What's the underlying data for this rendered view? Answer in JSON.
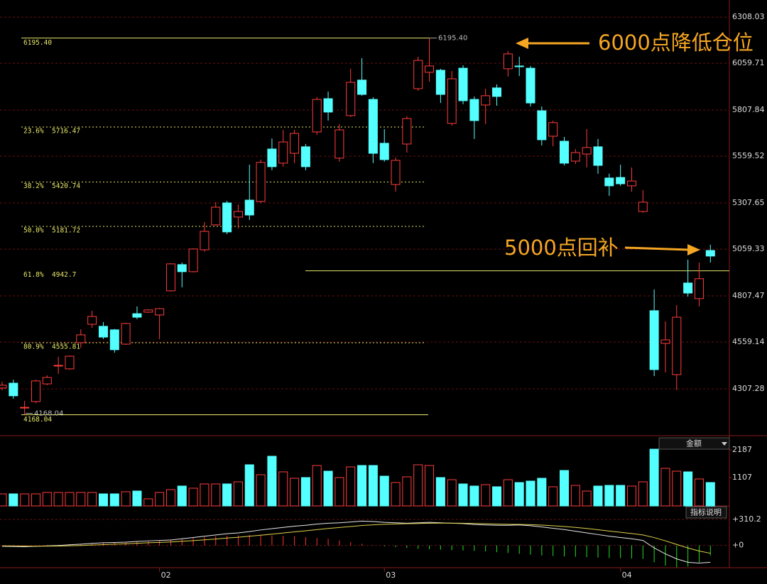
{
  "chart_data": [
    {
      "type": "candlestick",
      "ylim": [
        4063,
        6400
      ],
      "yticks": [
        6308.03,
        6059.71,
        5807.84,
        5559.52,
        5307.65,
        5059.33,
        4807.47,
        4559.14,
        4307.28
      ],
      "grid": true,
      "up_color": "#ff3c3c",
      "down_color": "#54ffff",
      "categories": [
        null,
        null,
        null,
        null,
        null,
        null,
        null,
        null,
        null,
        null,
        null,
        null,
        null,
        null,
        "02",
        null,
        null,
        null,
        null,
        null,
        null,
        null,
        null,
        null,
        null,
        null,
        null,
        null,
        null,
        null,
        null,
        null,
        null,
        null,
        "03",
        null,
        null,
        null,
        null,
        null,
        null,
        null,
        null,
        null,
        null,
        null,
        null,
        null,
        null,
        null,
        null,
        null,
        null,
        null,
        null,
        "04",
        null,
        null,
        null,
        null,
        null,
        null,
        null,
        null
      ],
      "open": [
        4312,
        4338,
        4205,
        4239,
        4334,
        4430,
        4415,
        4556,
        4655,
        4644,
        4625,
        4548,
        4712,
        4720,
        4705,
        4835,
        4976,
        4938,
        5056,
        5190,
        5308,
        5232,
        5323,
        5316,
        5598,
        5522,
        5575,
        5610,
        5690,
        5869,
        5549,
        5778,
        5969,
        5865,
        5629,
        5407,
        5625,
        5923,
        6011,
        6022,
        5736,
        6033,
        5865,
        5835,
        5927,
        6030,
        6045,
        6033,
        5804,
        5667,
        5640,
        5533,
        5571,
        5610,
        5442,
        5445,
        5400,
        5262,
        4728,
        4552,
        4384,
        4877,
        4793,
        5052
      ],
      "high": [
        4346,
        4357,
        4243,
        4357,
        4380,
        4480,
        4487,
        4628,
        4728,
        4667,
        4630,
        4663,
        4751,
        4736,
        4743,
        4984,
        4987,
        5064,
        5205,
        5312,
        5319,
        5300,
        5514,
        5541,
        5655,
        5701,
        5701,
        5625,
        5877,
        5907,
        5732,
        6030,
        6087,
        5877,
        5705,
        5552,
        5774,
        6095,
        6195.4,
        6030,
        6018,
        6049,
        5881,
        5923,
        5946,
        6125,
        6095,
        6045,
        5827,
        5751,
        5663,
        5598,
        5705,
        5652,
        5465,
        5514,
        5499,
        5377,
        4842,
        4670,
        4758,
        5003,
        4987,
        5083
      ],
      "low": [
        4300,
        4254,
        4168.04,
        4231,
        4327,
        4388,
        4410,
        4529,
        4636,
        4575,
        4502,
        4544,
        4682,
        4716,
        4575,
        4831,
        4854,
        4934,
        5045,
        5186,
        5140,
        5171,
        5216,
        5308,
        5484,
        5503,
        5522,
        5484,
        5675,
        5751,
        5530,
        5770,
        5885,
        5522,
        5530,
        5369,
        5579,
        5911,
        5961,
        5846,
        5724,
        5839,
        5652,
        5732,
        5831,
        5988,
        5991,
        5827,
        5617,
        5613,
        5510,
        5518,
        5499,
        5465,
        5346,
        5400,
        5369,
        5255,
        4376,
        4396,
        4300,
        4804,
        4751,
        4987
      ],
      "close": [
        4327,
        4270,
        4208,
        4350,
        4369,
        4434,
        4483,
        4598,
        4697,
        4586,
        4518,
        4659,
        4693,
        4732,
        4739,
        4980,
        4938,
        5060,
        5155,
        5285,
        5152,
        5262,
        5243,
        5526,
        5503,
        5636,
        5682,
        5503,
        5865,
        5797,
        5701,
        5957,
        5892,
        5575,
        5541,
        5537,
        5762,
        6075,
        6045,
        5892,
        5976,
        5858,
        5751,
        5885,
        5881,
        6110,
        6041,
        5846,
        5648,
        5740,
        5522,
        5579,
        5606,
        5510,
        5400,
        5411,
        5426,
        5312,
        4411,
        4571,
        4693,
        4823,
        4900,
        5022
      ],
      "levels": [
        {
          "price": {
            "value": 6195.4,
            "label": "6195.40"
          }
        },
        {
          "ratio": "23.6%",
          "price": 5716.47
        },
        {
          "ratio": "38.2%",
          "price": 5420.74
        },
        {
          "ratio": "50.0%",
          "price": 5181.72
        },
        {
          "ratio": "61.8%",
          "price": 4942.7
        },
        {
          "ratio": "80.9%",
          "price": 4555.81
        },
        {
          "price": 4168.04
        }
      ],
      "level_color": "#e8e86a",
      "annotations": [
        "6000点降低仓位",
        "5000点回补"
      ]
    },
    {
      "type": "volume",
      "ylim": [
        0,
        2714
      ],
      "yticks": [
        2187,
        1107
      ],
      "values": [
        471,
        471,
        471,
        471,
        526,
        526,
        526,
        526,
        526,
        471,
        471,
        554,
        582,
        277,
        526,
        637,
        776,
        693,
        859,
        859,
        859,
        942,
        1607,
        1219,
        1939,
        1330,
        1080,
        1108,
        1579,
        1357,
        1108,
        1524,
        1579,
        1579,
        1163,
        914,
        1136,
        1607,
        1579,
        1108,
        1025,
        859,
        776,
        831,
        748,
        1025,
        914,
        970,
        1080,
        748,
        1385,
        803,
        582,
        776,
        803,
        803,
        776,
        942,
        2216,
        1468,
        1357,
        1330,
        1053,
        914
      ],
      "indicator": "金额",
      "help": "指标说明"
    },
    {
      "type": "macd",
      "ylim": [
        -290,
        344
      ],
      "yticks": [
        {
          "value": 310.2,
          "label": "+310.2"
        },
        {
          "value": 0,
          "label": "+0"
        }
      ],
      "up_color": "#ff3232",
      "down_color": "#22dd22",
      "histogram": [
        2,
        3,
        4,
        2,
        5,
        8,
        15,
        20,
        25,
        30,
        35,
        40,
        45,
        50,
        60,
        70,
        80,
        90,
        100,
        110,
        115,
        120,
        125,
        125,
        120,
        115,
        110,
        100,
        90,
        80,
        60,
        40,
        20,
        5,
        -10,
        -20,
        -30,
        -40,
        -45,
        -50,
        -55,
        -60,
        -65,
        -70,
        -80,
        -90,
        -100,
        -110,
        -120,
        -125,
        -130,
        -135,
        -140,
        -145,
        -150,
        -150,
        -155,
        -160,
        -200,
        -240,
        -260,
        -250,
        -200,
        -120
      ],
      "series": [
        {
          "color": "#e8e8e8",
          "values": [
            -10,
            -12,
            -15,
            -10,
            -5,
            0,
            8,
            15,
            25,
            32,
            35,
            40,
            48,
            55,
            60,
            65,
            80,
            95,
            110,
            125,
            140,
            150,
            165,
            185,
            200,
            215,
            230,
            240,
            255,
            265,
            270,
            280,
            290,
            285,
            275,
            270,
            265,
            270,
            275,
            270,
            265,
            260,
            250,
            245,
            240,
            240,
            245,
            235,
            220,
            205,
            190,
            170,
            150,
            130,
            110,
            95,
            80,
            60,
            -30,
            -100,
            -160,
            -200,
            -210,
            -200
          ]
        },
        {
          "color": "#e0d24a",
          "values": [
            -5,
            -6,
            -8,
            -9,
            -8,
            -7,
            -4,
            0,
            5,
            10,
            15,
            20,
            26,
            32,
            37,
            42,
            50,
            58,
            67,
            77,
            88,
            98,
            110,
            122,
            135,
            149,
            162,
            175,
            189,
            202,
            214,
            226,
            238,
            246,
            252,
            256,
            259,
            262,
            265,
            266,
            266,
            265,
            262,
            259,
            255,
            252,
            251,
            248,
            243,
            235,
            226,
            215,
            202,
            188,
            172,
            157,
            142,
            125,
            94,
            55,
            12,
            -30,
            -66,
            -93
          ]
        }
      ]
    }
  ]
}
